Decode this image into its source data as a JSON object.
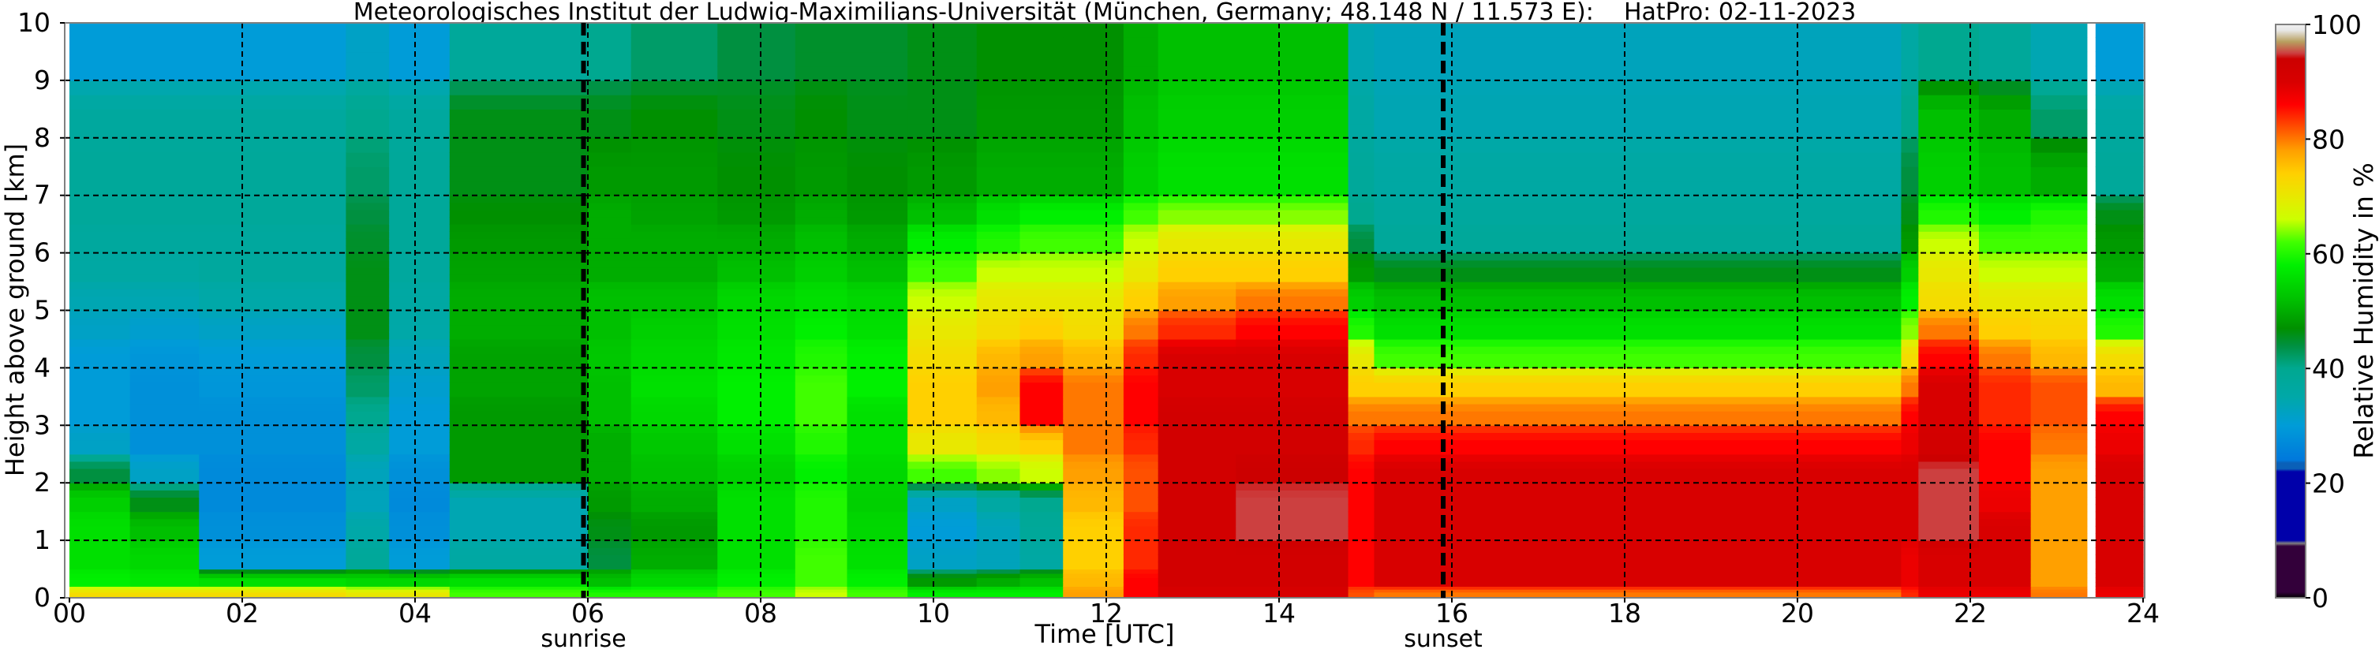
{
  "chart_data": {
    "type": "heatmap",
    "title": "Meteorologisches Institut der Ludwig-Maximilians-Universität (München, Germany; 48.148 N / 11.573 E):    HatPro: 02-11-2023",
    "xlabel": "Time [UTC]",
    "ylabel": "Height above ground [km]",
    "xlim": [
      0,
      24
    ],
    "ylim": [
      0,
      10
    ],
    "x_tick_labels": [
      "00",
      "02",
      "04",
      "06",
      "08",
      "10",
      "12",
      "14",
      "16",
      "18",
      "20",
      "22",
      "24"
    ],
    "y_tick_labels": [
      "0",
      "1",
      "2",
      "3",
      "4",
      "5",
      "6",
      "7",
      "8",
      "9",
      "10"
    ],
    "grid": true,
    "annotations": [
      {
        "label": "sunrise",
        "time": 5.95
      },
      {
        "label": "sunset",
        "time": 15.9
      }
    ],
    "colorbar": {
      "label": "Relative Humidity in %",
      "range": [
        0,
        100
      ],
      "tick_labels": [
        "0",
        "20",
        "40",
        "60",
        "80",
        "100"
      ],
      "stops": [
        [
          0,
          "#000000"
        ],
        [
          1,
          "#33003a"
        ],
        [
          9,
          "#33003a"
        ],
        [
          9.5,
          "#808080"
        ],
        [
          10,
          "#0000aa"
        ],
        [
          22,
          "#0000aa"
        ],
        [
          22.5,
          "#0a60b8"
        ],
        [
          23.5,
          "#0a60b8"
        ],
        [
          24,
          "#0078dc"
        ],
        [
          30,
          "#009cd8"
        ],
        [
          35,
          "#00a8a8"
        ],
        [
          40,
          "#00a890"
        ],
        [
          44,
          "#009040"
        ],
        [
          47,
          "#009000"
        ],
        [
          52,
          "#00c000"
        ],
        [
          58,
          "#00f000"
        ],
        [
          62,
          "#40ff00"
        ],
        [
          66,
          "#ccff00"
        ],
        [
          70,
          "#e8e800"
        ],
        [
          74,
          "#ffd000"
        ],
        [
          78,
          "#ffa000"
        ],
        [
          82,
          "#ff5000"
        ],
        [
          86,
          "#ff0000"
        ],
        [
          90,
          "#d80000"
        ],
        [
          94,
          "#cc0000"
        ],
        [
          95,
          "#cc4040"
        ],
        [
          97,
          "#b8a060"
        ],
        [
          99,
          "#e8e8e8"
        ],
        [
          100,
          "#f0f0f0"
        ]
      ]
    },
    "height_bins_km": [
      0,
      0.2,
      0.5,
      1,
      1.5,
      2,
      2.5,
      3,
      3.5,
      4,
      4.5,
      5,
      5.5,
      6,
      6.5,
      7,
      8,
      9,
      10
    ],
    "columns": [
      {
        "t": [
          0,
          0.7
        ],
        "rh": [
          72,
          58,
          56,
          56,
          54,
          44,
          32,
          30,
          30,
          30,
          32,
          34,
          36,
          37,
          38,
          38,
          37,
          30
        ]
      },
      {
        "t": [
          0.7,
          1.5
        ],
        "rh": [
          72,
          57,
          55,
          52,
          46,
          32,
          28,
          28,
          28,
          29,
          31,
          34,
          36,
          37,
          38,
          38,
          37,
          30
        ]
      },
      {
        "t": [
          1.5,
          3.2
        ],
        "rh": [
          72,
          56,
          30,
          28,
          27,
          27,
          28,
          28,
          29,
          30,
          32,
          35,
          37,
          37,
          38,
          38,
          37,
          30
        ]
      },
      {
        "t": [
          3.2,
          3.7
        ],
        "rh": [
          70,
          55,
          38,
          35,
          33,
          33,
          36,
          40,
          42,
          44,
          46,
          46,
          46,
          45,
          44,
          42,
          40,
          32
        ]
      },
      {
        "t": [
          3.7,
          4.4
        ],
        "rh": [
          70,
          55,
          30,
          28,
          27,
          28,
          30,
          30,
          31,
          33,
          35,
          36,
          37,
          38,
          38,
          38,
          37,
          30
        ]
      },
      {
        "t": [
          4.4,
          6.0
        ],
        "rh": [
          62,
          56,
          36,
          34,
          34,
          48,
          48,
          48,
          49,
          49,
          50,
          50,
          49,
          48,
          47,
          46,
          46,
          38
        ]
      },
      {
        "t": [
          6.0,
          6.5
        ],
        "rh": [
          60,
          52,
          44,
          46,
          48,
          50,
          50,
          52,
          52,
          53,
          52,
          52,
          50,
          50,
          50,
          48,
          46,
          40
        ]
      },
      {
        "t": [
          6.5,
          7.5
        ],
        "rh": [
          60,
          55,
          50,
          48,
          50,
          52,
          53,
          55,
          56,
          55,
          54,
          52,
          50,
          50,
          49,
          48,
          47,
          42
        ]
      },
      {
        "t": [
          7.5,
          8.4
        ],
        "rh": [
          62,
          58,
          56,
          56,
          56,
          54,
          56,
          58,
          58,
          57,
          56,
          55,
          52,
          50,
          48,
          47,
          46,
          44
        ]
      },
      {
        "t": [
          8.4,
          9.0
        ],
        "rh": [
          66,
          62,
          62,
          60,
          60,
          58,
          60,
          62,
          62,
          60,
          58,
          56,
          54,
          52,
          50,
          48,
          47,
          45
        ]
      },
      {
        "t": [
          9.0,
          9.7
        ],
        "rh": [
          62,
          58,
          56,
          55,
          54,
          55,
          56,
          56,
          58,
          58,
          56,
          55,
          52,
          50,
          48,
          47,
          46,
          45
        ]
      },
      {
        "t": [
          9.7,
          10.5
        ],
        "rh": [
          58,
          48,
          32,
          30,
          32,
          62,
          70,
          74,
          74,
          72,
          70,
          66,
          62,
          58,
          52,
          48,
          46,
          46
        ]
      },
      {
        "t": [
          10.5,
          11.0
        ],
        "rh": [
          58,
          50,
          33,
          33,
          36,
          64,
          72,
          76,
          78,
          76,
          72,
          70,
          66,
          60,
          56,
          50,
          48,
          47
        ]
      },
      {
        "t": [
          11.0,
          11.5
        ],
        "rh": [
          58,
          52,
          36,
          38,
          40,
          66,
          74,
          86,
          86,
          78,
          74,
          70,
          66,
          62,
          58,
          50,
          48,
          47
        ]
      },
      {
        "t": [
          11.5,
          12.2
        ],
        "rh": [
          78,
          76,
          74,
          74,
          76,
          78,
          80,
          80,
          80,
          76,
          72,
          70,
          66,
          62,
          58,
          50,
          48,
          47
        ]
      },
      {
        "t": [
          12.2,
          12.6
        ],
        "rh": [
          86,
          86,
          84,
          84,
          82,
          82,
          84,
          86,
          86,
          84,
          80,
          74,
          70,
          66,
          62,
          54,
          52,
          50
        ]
      },
      {
        "t": [
          12.6,
          13.5
        ],
        "rh": [
          90,
          92,
          92,
          92,
          92,
          92,
          92,
          92,
          90,
          90,
          84,
          78,
          74,
          70,
          64,
          56,
          54,
          52
        ]
      },
      {
        "t": [
          13.5,
          14.8
        ],
        "rh": [
          90,
          92,
          92,
          95,
          95,
          94,
          92,
          92,
          90,
          90,
          86,
          80,
          74,
          70,
          64,
          56,
          54,
          52
        ]
      },
      {
        "t": [
          14.8,
          15.1
        ],
        "rh": [
          82,
          86,
          86,
          86,
          86,
          86,
          84,
          80,
          74,
          70,
          60,
          54,
          48,
          44,
          40,
          38,
          36,
          34
        ]
      },
      {
        "t": [
          15.1,
          21.2
        ],
        "rh": [
          80,
          90,
          90,
          90,
          90,
          90,
          86,
          80,
          74,
          62,
          56,
          52,
          46,
          38,
          37,
          36,
          34,
          33
        ]
      },
      {
        "t": [
          21.2,
          21.4
        ],
        "rh": [
          84,
          88,
          88,
          90,
          90,
          90,
          88,
          86,
          80,
          72,
          64,
          58,
          54,
          48,
          46,
          44,
          40,
          36
        ]
      },
      {
        "t": [
          21.4,
          22.1
        ],
        "rh": [
          88,
          90,
          90,
          95,
          95,
          95,
          92,
          90,
          90,
          86,
          80,
          72,
          70,
          66,
          60,
          54,
          52,
          40
        ]
      },
      {
        "t": [
          22.1,
          22.7
        ],
        "rh": [
          88,
          90,
          90,
          90,
          88,
          86,
          86,
          84,
          84,
          80,
          74,
          70,
          66,
          62,
          58,
          52,
          50,
          38
        ]
      },
      {
        "t": [
          22.7,
          23.35
        ],
        "rh": [
          80,
          78,
          78,
          78,
          78,
          78,
          80,
          82,
          82,
          76,
          73,
          70,
          66,
          62,
          60,
          50,
          42,
          34
        ]
      },
      {
        "t": [
          23.45,
          24.0
        ],
        "rh": [
          88,
          90,
          90,
          90,
          90,
          90,
          88,
          86,
          76,
          72,
          60,
          56,
          50,
          48,
          46,
          38,
          36,
          30
        ]
      }
    ]
  }
}
